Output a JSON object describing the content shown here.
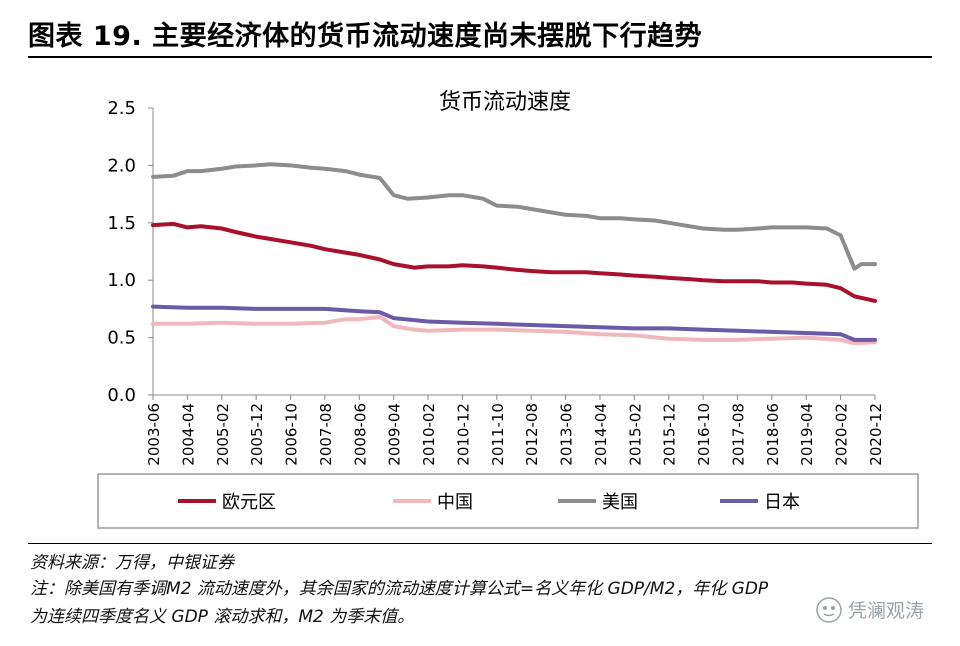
{
  "figure_title": "图表 19. 主要经济体的货币流动速度尚未摆脱下行趋势",
  "source": "资料来源：万得，中银证券",
  "note_line1": "注：除美国有季调M2 流动速度外，其余国家的流动速度计算公式=名义年化 GDP/M2，年化 GDP",
  "note_line2": "为连续四季度名义 GDP 滚动求和，M2 为季末值。",
  "watermark": "凭澜观涛",
  "chart_data": {
    "type": "line",
    "title": "货币流动速度",
    "xlabel": "",
    "ylabel": "",
    "ylim": [
      0,
      2.5
    ],
    "yticks": [
      "0.0",
      "0.5",
      "1.0",
      "1.5",
      "2.0",
      "2.5"
    ],
    "grid": false,
    "legend_position": "bottom",
    "x_start": "2003-06",
    "x_end": "2020-12",
    "x_tick_labels": [
      "2003-06",
      "2004-04",
      "2005-02",
      "2005-12",
      "2006-10",
      "2007-08",
      "2008-06",
      "2009-04",
      "2010-02",
      "2010-12",
      "2011-10",
      "2012-08",
      "2013-06",
      "2014-04",
      "2015-02",
      "2015-12",
      "2016-10",
      "2017-08",
      "2018-06",
      "2019-04",
      "2020-02",
      "2020-12"
    ],
    "series": [
      {
        "name": "欧元区",
        "color": "#a8102e",
        "points": [
          [
            "2003-06",
            1.48
          ],
          [
            "2003-12",
            1.49
          ],
          [
            "2004-04",
            1.46
          ],
          [
            "2004-08",
            1.47
          ],
          [
            "2005-02",
            1.45
          ],
          [
            "2005-06",
            1.42
          ],
          [
            "2005-12",
            1.38
          ],
          [
            "2006-04",
            1.36
          ],
          [
            "2006-10",
            1.33
          ],
          [
            "2007-04",
            1.3
          ],
          [
            "2007-08",
            1.27
          ],
          [
            "2008-02",
            1.24
          ],
          [
            "2008-06",
            1.22
          ],
          [
            "2008-12",
            1.18
          ],
          [
            "2009-04",
            1.14
          ],
          [
            "2009-10",
            1.11
          ],
          [
            "2010-02",
            1.12
          ],
          [
            "2010-08",
            1.12
          ],
          [
            "2010-12",
            1.13
          ],
          [
            "2011-06",
            1.12
          ],
          [
            "2011-10",
            1.11
          ],
          [
            "2012-04",
            1.09
          ],
          [
            "2012-08",
            1.08
          ],
          [
            "2013-02",
            1.07
          ],
          [
            "2013-06",
            1.07
          ],
          [
            "2013-12",
            1.07
          ],
          [
            "2014-04",
            1.06
          ],
          [
            "2014-10",
            1.05
          ],
          [
            "2015-02",
            1.04
          ],
          [
            "2015-08",
            1.03
          ],
          [
            "2015-12",
            1.02
          ],
          [
            "2016-06",
            1.01
          ],
          [
            "2016-10",
            1.0
          ],
          [
            "2017-04",
            0.99
          ],
          [
            "2017-08",
            0.99
          ],
          [
            "2018-02",
            0.99
          ],
          [
            "2018-06",
            0.98
          ],
          [
            "2018-12",
            0.98
          ],
          [
            "2019-04",
            0.97
          ],
          [
            "2019-10",
            0.96
          ],
          [
            "2020-02",
            0.93
          ],
          [
            "2020-06",
            0.86
          ],
          [
            "2020-12",
            0.82
          ]
        ]
      },
      {
        "name": "中国",
        "color": "#f0b8bc",
        "points": [
          [
            "2003-06",
            0.62
          ],
          [
            "2004-04",
            0.62
          ],
          [
            "2005-02",
            0.63
          ],
          [
            "2005-12",
            0.62
          ],
          [
            "2006-10",
            0.62
          ],
          [
            "2007-08",
            0.63
          ],
          [
            "2008-02",
            0.66
          ],
          [
            "2008-06",
            0.66
          ],
          [
            "2008-12",
            0.68
          ],
          [
            "2009-04",
            0.6
          ],
          [
            "2009-10",
            0.57
          ],
          [
            "2010-02",
            0.56
          ],
          [
            "2010-12",
            0.57
          ],
          [
            "2011-10",
            0.57
          ],
          [
            "2012-08",
            0.56
          ],
          [
            "2013-06",
            0.55
          ],
          [
            "2014-04",
            0.53
          ],
          [
            "2015-02",
            0.52
          ],
          [
            "2015-12",
            0.49
          ],
          [
            "2016-10",
            0.48
          ],
          [
            "2017-08",
            0.48
          ],
          [
            "2018-06",
            0.49
          ],
          [
            "2019-04",
            0.5
          ],
          [
            "2020-02",
            0.48
          ],
          [
            "2020-06",
            0.45
          ],
          [
            "2020-12",
            0.46
          ]
        ]
      },
      {
        "name": "美国",
        "color": "#8c8c8c",
        "points": [
          [
            "2003-06",
            1.9
          ],
          [
            "2003-12",
            1.91
          ],
          [
            "2004-04",
            1.95
          ],
          [
            "2004-08",
            1.95
          ],
          [
            "2005-02",
            1.97
          ],
          [
            "2005-06",
            1.99
          ],
          [
            "2005-12",
            2.0
          ],
          [
            "2006-04",
            2.01
          ],
          [
            "2006-10",
            2.0
          ],
          [
            "2007-04",
            1.98
          ],
          [
            "2007-08",
            1.97
          ],
          [
            "2008-02",
            1.95
          ],
          [
            "2008-06",
            1.92
          ],
          [
            "2008-12",
            1.89
          ],
          [
            "2009-04",
            1.74
          ],
          [
            "2009-08",
            1.71
          ],
          [
            "2010-02",
            1.72
          ],
          [
            "2010-08",
            1.74
          ],
          [
            "2010-12",
            1.74
          ],
          [
            "2011-06",
            1.71
          ],
          [
            "2011-10",
            1.65
          ],
          [
            "2012-04",
            1.64
          ],
          [
            "2012-08",
            1.62
          ],
          [
            "2013-02",
            1.59
          ],
          [
            "2013-06",
            1.57
          ],
          [
            "2013-12",
            1.56
          ],
          [
            "2014-04",
            1.54
          ],
          [
            "2014-10",
            1.54
          ],
          [
            "2015-02",
            1.53
          ],
          [
            "2015-08",
            1.52
          ],
          [
            "2015-12",
            1.5
          ],
          [
            "2016-06",
            1.47
          ],
          [
            "2016-10",
            1.45
          ],
          [
            "2017-04",
            1.44
          ],
          [
            "2017-08",
            1.44
          ],
          [
            "2018-02",
            1.45
          ],
          [
            "2018-06",
            1.46
          ],
          [
            "2018-12",
            1.46
          ],
          [
            "2019-04",
            1.46
          ],
          [
            "2019-10",
            1.45
          ],
          [
            "2020-02",
            1.39
          ],
          [
            "2020-06",
            1.1
          ],
          [
            "2020-08",
            1.14
          ],
          [
            "2020-12",
            1.14
          ]
        ]
      },
      {
        "name": "日本",
        "color": "#6a5aa8",
        "points": [
          [
            "2003-06",
            0.77
          ],
          [
            "2004-04",
            0.76
          ],
          [
            "2005-02",
            0.76
          ],
          [
            "2005-12",
            0.75
          ],
          [
            "2006-10",
            0.75
          ],
          [
            "2007-08",
            0.75
          ],
          [
            "2008-06",
            0.73
          ],
          [
            "2008-12",
            0.72
          ],
          [
            "2009-04",
            0.67
          ],
          [
            "2010-02",
            0.64
          ],
          [
            "2010-12",
            0.63
          ],
          [
            "2011-10",
            0.62
          ],
          [
            "2012-08",
            0.61
          ],
          [
            "2013-06",
            0.6
          ],
          [
            "2014-04",
            0.59
          ],
          [
            "2015-02",
            0.58
          ],
          [
            "2015-12",
            0.58
          ],
          [
            "2016-10",
            0.57
          ],
          [
            "2017-08",
            0.56
          ],
          [
            "2018-06",
            0.55
          ],
          [
            "2019-04",
            0.54
          ],
          [
            "2020-02",
            0.53
          ],
          [
            "2020-06",
            0.48
          ],
          [
            "2020-12",
            0.48
          ]
        ]
      }
    ]
  }
}
